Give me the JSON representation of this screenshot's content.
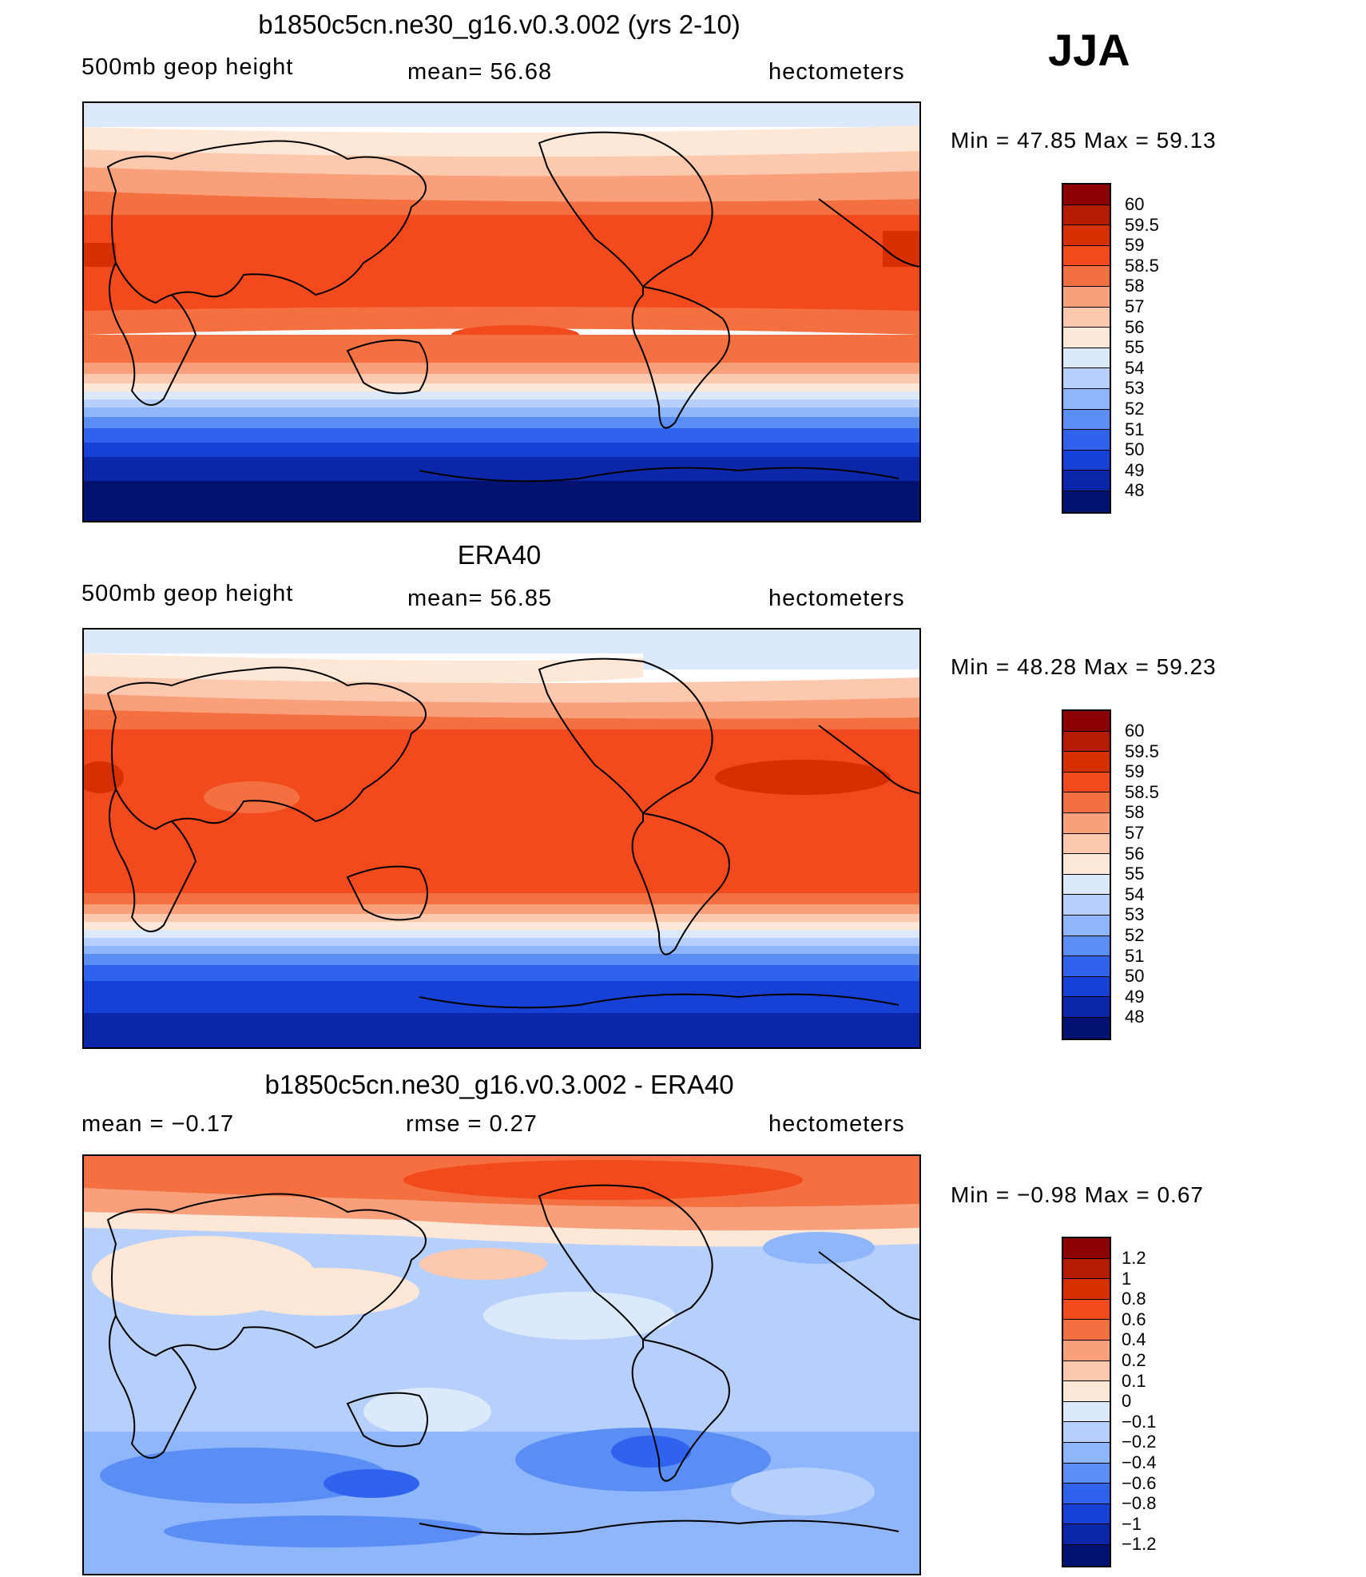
{
  "season": "JJA",
  "panels": [
    {
      "title": "b1850c5cn.ne30_g16.v0.3.002 (yrs 2-10)",
      "left": "500mb geop height",
      "center": "mean=   56.68",
      "right": "hectometers",
      "minmax": "Min =   47.85 Max =   59.13",
      "levels": [
        "60",
        "59.5",
        "59",
        "58.5",
        "58",
        "57",
        "56",
        "55",
        "54",
        "53",
        "52",
        "51",
        "50",
        "49",
        "48"
      ]
    },
    {
      "title": "ERA40",
      "left": "500mb geop height",
      "center": "mean=   56.85",
      "right": "hectometers",
      "minmax": "Min =   48.28 Max =   59.23",
      "levels": [
        "60",
        "59.5",
        "59",
        "58.5",
        "58",
        "57",
        "56",
        "55",
        "54",
        "53",
        "52",
        "51",
        "50",
        "49",
        "48"
      ]
    },
    {
      "title": "b1850c5cn.ne30_g16.v0.3.002 - ERA40",
      "left": "mean =   −0.17",
      "center": "rmse =    0.27",
      "right": "hectometers",
      "minmax": "Min =  −0.98 Max =    0.67",
      "levels": [
        "1.2",
        "1",
        "0.8",
        "0.6",
        "0.4",
        "0.2",
        "0.1",
        "0",
        "−0.1",
        "−0.2",
        "−0.4",
        "−0.6",
        "−0.8",
        "−1",
        "−1.2"
      ]
    }
  ],
  "colors": [
    "#8b0000",
    "#b31c00",
    "#d63000",
    "#f24a1d",
    "#f57040",
    "#f9a07a",
    "#fcc9ae",
    "#fde8d8",
    "#dce9fb",
    "#b7d0fb",
    "#8fb5fb",
    "#5b8ef5",
    "#2f63ee",
    "#1740d6",
    "#0b26a8",
    "#031270"
  ]
}
